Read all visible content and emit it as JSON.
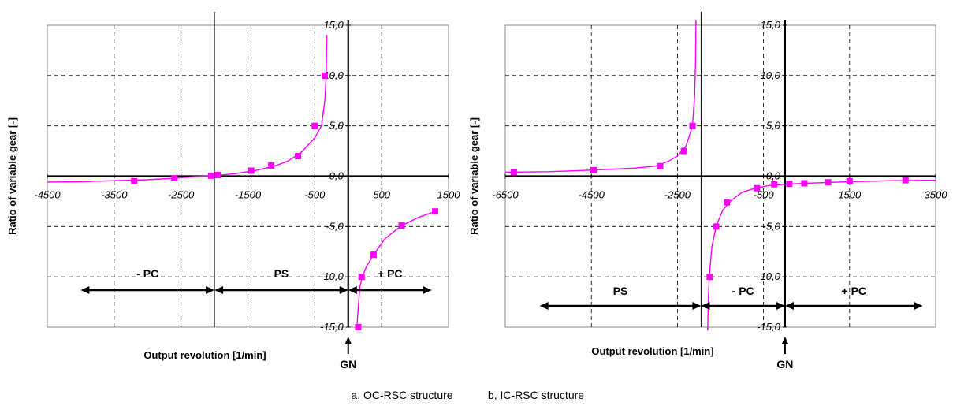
{
  "captions": [
    "a, OC-RSC structure",
    "b, IC-RSC structure"
  ],
  "colors": {
    "curve": "#ff00ff",
    "axis": "#000000",
    "grid": "#000000"
  },
  "chart_data": [
    {
      "type": "line",
      "xlabel": "Output revolution [1/min]",
      "ylabel": "Ratio of variable gear [-]",
      "xlim": [
        -4500,
        1500
      ],
      "ylim": [
        -15,
        15
      ],
      "x_ticks": [
        -4500,
        -3500,
        -2500,
        -1500,
        -500,
        500,
        1500
      ],
      "x_tick_labels": [
        "-4500",
        "-3500",
        "-2500",
        "-1500",
        "-500",
        "500",
        "1500"
      ],
      "y_ticks": [
        15,
        10,
        5,
        0,
        -5,
        -10,
        -15
      ],
      "y_tick_labels": [
        "15,0",
        "10,0",
        "5,0",
        "0,0",
        "-5,0",
        "-10,0",
        "-15,0"
      ],
      "grid": true,
      "boundary_x": -2000,
      "regions": [
        {
          "label": "- PC",
          "from": -4000,
          "to": -2000
        },
        {
          "label": "PS",
          "from": -2000,
          "to": 0
        },
        {
          "label": "+ PC",
          "from": 0,
          "to": 1250
        }
      ],
      "marker": "GN",
      "series": [
        {
          "curve": [
            [
              -4600,
              -0.6
            ],
            [
              -4000,
              -0.55
            ],
            [
              -3500,
              -0.45
            ],
            [
              -3000,
              -0.35
            ],
            [
              -2600,
              -0.2
            ],
            [
              -2300,
              -0.05
            ],
            [
              -2000,
              0.05
            ],
            [
              -1700,
              0.25
            ],
            [
              -1400,
              0.55
            ],
            [
              -1100,
              1.0
            ],
            [
              -900,
              1.5
            ],
            [
              -700,
              2.4
            ],
            [
              -500,
              3.8
            ],
            [
              -400,
              5.0
            ],
            [
              -350,
              7.5
            ],
            [
              -330,
              10.0
            ],
            [
              -320,
              14.0
            ]
          ],
          "points": [
            [
              -3200,
              -0.5
            ],
            [
              -2600,
              -0.2
            ],
            [
              -2050,
              0.05
            ],
            [
              -1950,
              0.12
            ],
            [
              -1450,
              0.55
            ],
            [
              -1150,
              1.05
            ],
            [
              -750,
              2.0
            ],
            [
              -500,
              5.0
            ],
            [
              -350,
              10.0
            ]
          ]
        },
        {
          "curve": [
            [
              130,
              -15.0
            ],
            [
              150,
              -13.0
            ],
            [
              175,
              -11.0
            ],
            [
              210,
              -10.0
            ],
            [
              270,
              -9.0
            ],
            [
              380,
              -7.8
            ],
            [
              550,
              -6.2
            ],
            [
              800,
              -4.9
            ],
            [
              1050,
              -4.1
            ],
            [
              1300,
              -3.5
            ]
          ],
          "points": [
            [
              150,
              -15.0
            ],
            [
              200,
              -10.0
            ],
            [
              380,
              -7.8
            ],
            [
              800,
              -4.9
            ],
            [
              1300,
              -3.5
            ]
          ]
        }
      ]
    },
    {
      "type": "line",
      "xlabel": "Output revolution [1/min]",
      "ylabel": "Ratio of variable gear [-]",
      "xlim": [
        -6500,
        3500
      ],
      "ylim": [
        -15,
        15
      ],
      "x_ticks": [
        -6500,
        -4500,
        -2500,
        -500,
        1500,
        3500
      ],
      "x_tick_labels": [
        "-6500",
        "-4500",
        "-2500",
        "-500",
        "1500",
        "3500"
      ],
      "y_ticks": [
        15,
        10,
        5,
        0,
        -5,
        -10,
        -15
      ],
      "y_tick_labels": [
        "15,0",
        "10,0",
        "5,0",
        "0,0",
        "-5,0",
        "-10,0",
        "-15,0"
      ],
      "grid": true,
      "boundary_x": -1950,
      "regions": [
        {
          "label": "PS",
          "from": -5700,
          "to": -1950
        },
        {
          "label": "- PC",
          "from": -1950,
          "to": 0
        },
        {
          "label": "+ PC",
          "from": 0,
          "to": 3200
        }
      ],
      "marker": "GN",
      "series": [
        {
          "curve": [
            [
              -6500,
              0.4
            ],
            [
              -5500,
              0.45
            ],
            [
              -4500,
              0.6
            ],
            [
              -3500,
              0.8
            ],
            [
              -3000,
              1.0
            ],
            [
              -2700,
              1.5
            ],
            [
              -2500,
              2.0
            ],
            [
              -2300,
              3.0
            ],
            [
              -2150,
              5.0
            ],
            [
              -2100,
              8.0
            ],
            [
              -2080,
              11.0
            ],
            [
              -2070,
              15.5
            ]
          ],
          "points": [
            [
              -6300,
              0.4
            ],
            [
              -4450,
              0.6
            ],
            [
              -2900,
              1.0
            ],
            [
              -2350,
              2.5
            ],
            [
              -2150,
              5.0
            ]
          ]
        },
        {
          "curve": [
            [
              -1800,
              -16.0
            ],
            [
              -1780,
              -12.0
            ],
            [
              -1760,
              -10.0
            ],
            [
              -1700,
              -7.0
            ],
            [
              -1600,
              -5.0
            ],
            [
              -1450,
              -3.4
            ],
            [
              -1250,
              -2.4
            ],
            [
              -1000,
              -1.6
            ],
            [
              -700,
              -1.2
            ],
            [
              -400,
              -0.95
            ],
            [
              0,
              -0.8
            ],
            [
              500,
              -0.7
            ],
            [
              1500,
              -0.55
            ],
            [
              2500,
              -0.45
            ],
            [
              3500,
              -0.4
            ]
          ],
          "points": [
            [
              -1750,
              -10.0
            ],
            [
              -1600,
              -5.0
            ],
            [
              -1350,
              -2.6
            ],
            [
              -650,
              -1.2
            ],
            [
              -250,
              -0.8
            ],
            [
              100,
              -0.75
            ],
            [
              450,
              -0.7
            ],
            [
              1000,
              -0.6
            ],
            [
              1500,
              -0.5
            ],
            [
              2800,
              -0.4
            ]
          ]
        }
      ]
    }
  ]
}
